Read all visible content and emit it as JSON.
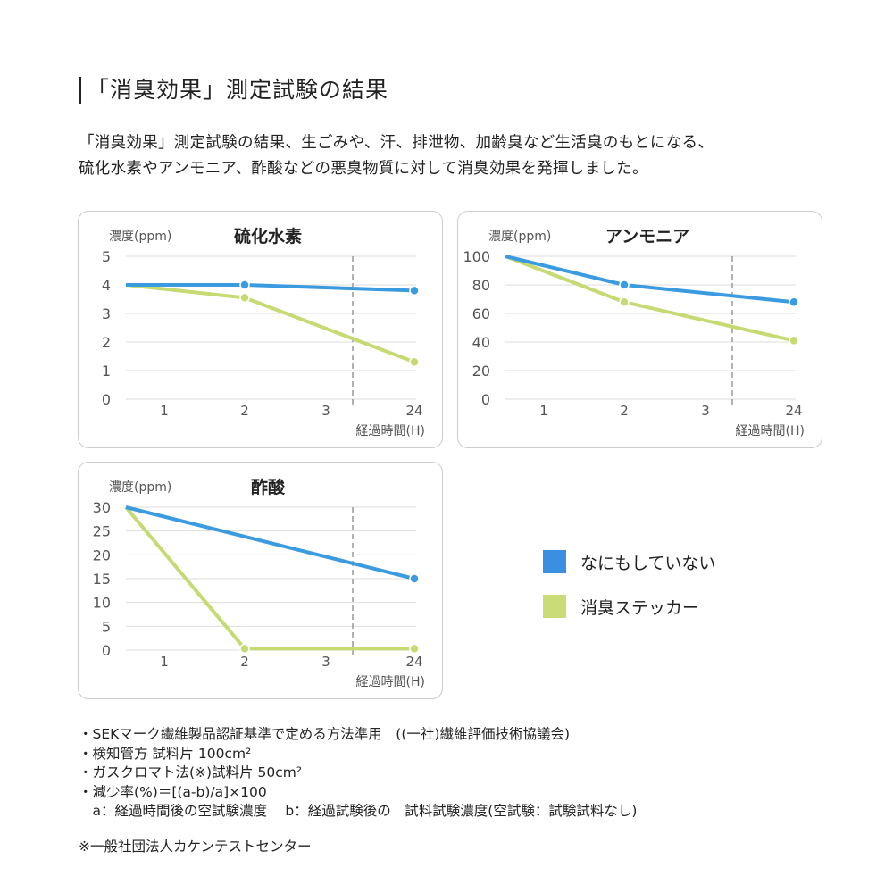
{
  "title": "「消臭効果」測定試験の結果",
  "intro": [
    "「消臭効果」測定試験の結果、生ごみや、汗、排泄物、加齢臭など生活臭のもとになる、",
    "硫化水素やアンモニア、酢酸などの悪臭物質に対して消臭効果を発揮しました。"
  ],
  "colors": {
    "untreated": "#3a9be0",
    "sticker": "#c5da72",
    "grid": "#dddddd",
    "dashed": "#999999"
  },
  "chart_data": [
    {
      "type": "line",
      "title": "硫化水素",
      "ylabel": "濃度(ppm)",
      "xlabel": "経過時間(H)",
      "x_ticks": [
        "1",
        "2",
        "3",
        "24"
      ],
      "y_ticks": [
        0,
        1,
        2,
        3,
        4,
        5
      ],
      "ylim": [
        0,
        5
      ],
      "grid": true,
      "series": [
        {
          "name": "なにもしていない",
          "x": [
            0,
            2,
            24
          ],
          "values": [
            4.0,
            4.0,
            3.8
          ]
        },
        {
          "name": "消臭ステッカー",
          "x": [
            0,
            2,
            24
          ],
          "values": [
            4.0,
            3.55,
            1.3
          ]
        }
      ]
    },
    {
      "type": "line",
      "title": "アンモニア",
      "ylabel": "濃度(ppm)",
      "xlabel": "経過時間(H)",
      "x_ticks": [
        "1",
        "2",
        "3",
        "24"
      ],
      "y_ticks": [
        0,
        20,
        40,
        60,
        80,
        100
      ],
      "ylim": [
        0,
        100
      ],
      "grid": true,
      "series": [
        {
          "name": "なにもしていない",
          "x": [
            0,
            2,
            24
          ],
          "values": [
            100,
            80,
            68
          ]
        },
        {
          "name": "消臭ステッカー",
          "x": [
            0,
            2,
            24
          ],
          "values": [
            100,
            68,
            41
          ]
        }
      ]
    },
    {
      "type": "line",
      "title": "酢酸",
      "ylabel": "濃度(ppm)",
      "xlabel": "経過時間(H)",
      "x_ticks": [
        "1",
        "2",
        "3",
        "24"
      ],
      "y_ticks": [
        0,
        5,
        10,
        15,
        20,
        25,
        30
      ],
      "ylim": [
        0,
        30
      ],
      "grid": true,
      "series": [
        {
          "name": "なにもしていない",
          "x": [
            0,
            24
          ],
          "values": [
            30,
            15
          ]
        },
        {
          "name": "消臭ステッカー",
          "x": [
            0,
            2,
            24
          ],
          "values": [
            30,
            0.3,
            0.3
          ]
        }
      ]
    }
  ],
  "legend": {
    "placement": "right",
    "items": [
      "なにもしていない",
      "消臭ステッカー"
    ]
  },
  "notes": [
    "・SEKマーク繊維製品認証基準で定める方法準用　((一社)繊維評価技術協議会)",
    "・検知管方 試料片 100cm²",
    "・ガスクロマト法(※)試料片 50cm²",
    "・減少率(%)＝[(a-b)/a]×100",
    "　a：経過時間後の空試験濃度　 b：経過試験後の　試料試験濃度(空試験：試験試料なし)"
  ],
  "source": "※一般社団法人カケンテストセンター"
}
